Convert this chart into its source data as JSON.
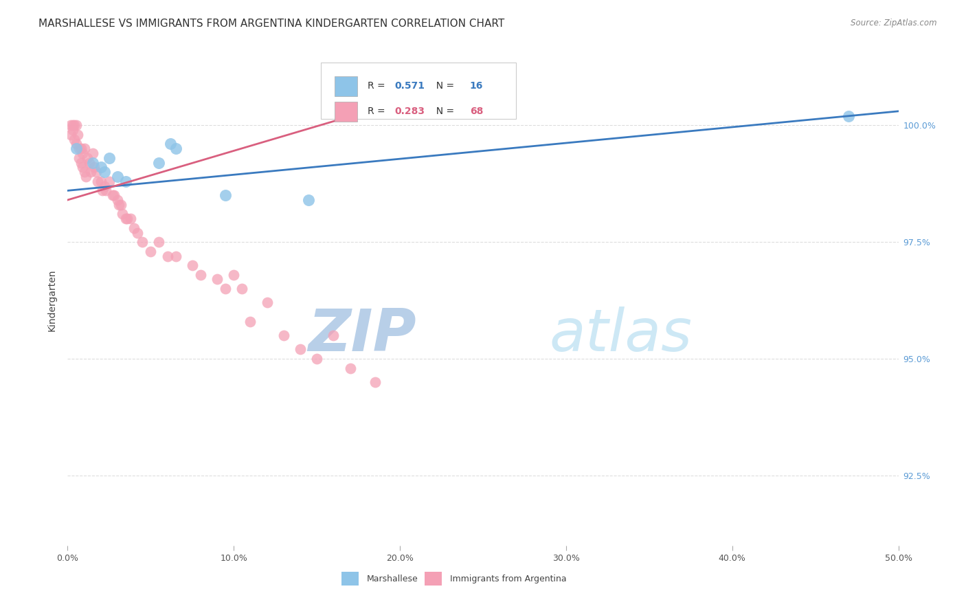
{
  "title": "MARSHALLESE VS IMMIGRANTS FROM ARGENTINA KINDERGARTEN CORRELATION CHART",
  "source": "Source: ZipAtlas.com",
  "ylabel": "Kindergarten",
  "x_tick_labels": [
    "0.0%",
    "10.0%",
    "20.0%",
    "30.0%",
    "40.0%",
    "50.0%"
  ],
  "x_tick_vals": [
    0.0,
    10.0,
    20.0,
    30.0,
    40.0,
    50.0
  ],
  "y_tick_labels": [
    "92.5%",
    "95.0%",
    "97.5%",
    "100.0%"
  ],
  "y_tick_vals": [
    92.5,
    95.0,
    97.5,
    100.0
  ],
  "xlim": [
    0.0,
    50.0
  ],
  "ylim": [
    91.0,
    101.5
  ],
  "legend_label_blue": "Marshallese",
  "legend_label_pink": "Immigrants from Argentina",
  "R_blue": 0.571,
  "N_blue": 16,
  "R_pink": 0.283,
  "N_pink": 68,
  "blue_color": "#8ec4e8",
  "pink_color": "#f4a0b5",
  "blue_line_color": "#3a7abf",
  "pink_line_color": "#d95f7f",
  "blue_line_x": [
    0.0,
    50.0
  ],
  "blue_line_y": [
    98.6,
    100.3
  ],
  "pink_line_x": [
    0.0,
    19.0
  ],
  "pink_line_y": [
    98.4,
    100.4
  ],
  "blue_scatter_x": [
    0.5,
    1.5,
    2.0,
    2.2,
    2.5,
    3.0,
    3.5,
    5.5,
    6.2,
    6.5,
    9.5,
    14.5,
    47.0
  ],
  "blue_scatter_y": [
    99.5,
    99.2,
    99.1,
    99.0,
    99.3,
    98.9,
    98.8,
    99.2,
    99.6,
    99.5,
    98.5,
    98.4,
    100.2
  ],
  "pink_scatter_x": [
    0.2,
    0.2,
    0.3,
    0.3,
    0.4,
    0.4,
    0.5,
    0.5,
    0.6,
    0.7,
    0.7,
    0.8,
    0.8,
    0.9,
    0.9,
    1.0,
    1.0,
    1.1,
    1.2,
    1.3,
    1.4,
    1.5,
    1.6,
    1.7,
    1.8,
    2.0,
    2.1,
    2.2,
    2.3,
    2.5,
    2.7,
    2.8,
    3.0,
    3.1,
    3.2,
    3.3,
    3.5,
    3.6,
    3.8,
    4.0,
    4.2,
    4.5,
    5.0,
    5.5,
    6.0,
    6.5,
    7.5,
    8.0,
    9.0,
    9.5,
    10.0,
    10.5,
    11.0,
    12.0,
    13.0,
    14.0,
    15.0,
    16.0,
    17.0,
    18.5
  ],
  "pink_scatter_y": [
    100.0,
    99.8,
    100.0,
    99.9,
    100.0,
    99.7,
    100.0,
    99.6,
    99.8,
    99.5,
    99.3,
    99.5,
    99.2,
    99.4,
    99.1,
    99.5,
    99.0,
    98.9,
    99.3,
    99.2,
    99.0,
    99.4,
    99.1,
    99.0,
    98.8,
    98.8,
    98.6,
    98.7,
    98.6,
    98.8,
    98.5,
    98.5,
    98.4,
    98.3,
    98.3,
    98.1,
    98.0,
    98.0,
    98.0,
    97.8,
    97.7,
    97.5,
    97.3,
    97.5,
    97.2,
    97.2,
    97.0,
    96.8,
    96.7,
    96.5,
    96.8,
    96.5,
    95.8,
    96.2,
    95.5,
    95.2,
    95.0,
    95.5,
    94.8,
    94.5
  ],
  "watermark_zip": "ZIP",
  "watermark_atlas": "atlas",
  "watermark_color": "#cde0f5",
  "title_fontsize": 11,
  "axis_label_fontsize": 10,
  "tick_fontsize": 9,
  "source_fontsize": 8.5
}
